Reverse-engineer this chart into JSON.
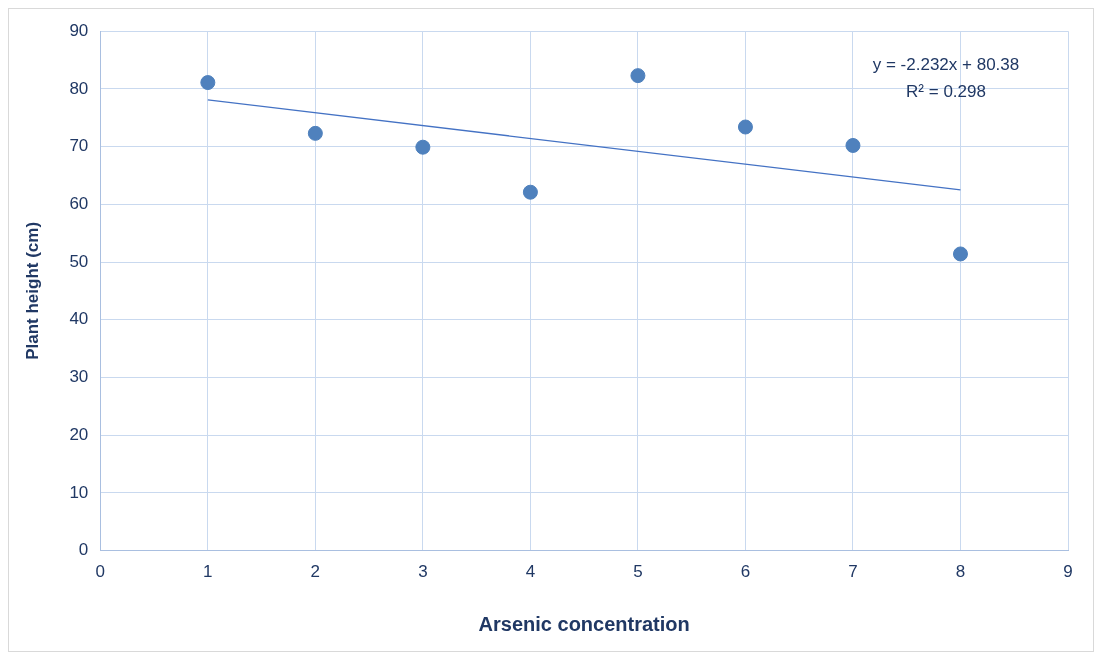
{
  "chart_data": {
    "type": "scatter",
    "xlabel": "Arsenic concentration",
    "ylabel": "Plant height (cm)",
    "annotations": [
      "y = -2.232x + 80.38",
      "R² = 0.298"
    ],
    "series": [
      {
        "color": "#4f81bd",
        "x": [
          1,
          2,
          3,
          4,
          5,
          6,
          7,
          8
        ],
        "values": [
          81.1,
          72.3,
          69.9,
          62.1,
          82.3,
          73.4,
          70.2,
          51.4
        ],
        "marker": "circle"
      },
      {
        "type": "line",
        "color": "#4472c4",
        "x": [
          1,
          8
        ],
        "values": [
          78.1,
          62.5
        ],
        "marker": "none",
        "line_style": "solid"
      }
    ],
    "xlim": [
      0,
      9
    ],
    "xticks": [
      0,
      1,
      2,
      3,
      4,
      5,
      6,
      7,
      8,
      9
    ],
    "ylim": [
      0,
      90
    ],
    "yticks": [
      0,
      10,
      20,
      30,
      40,
      50,
      60,
      70,
      80,
      90
    ],
    "grid": true,
    "legend": false
  }
}
